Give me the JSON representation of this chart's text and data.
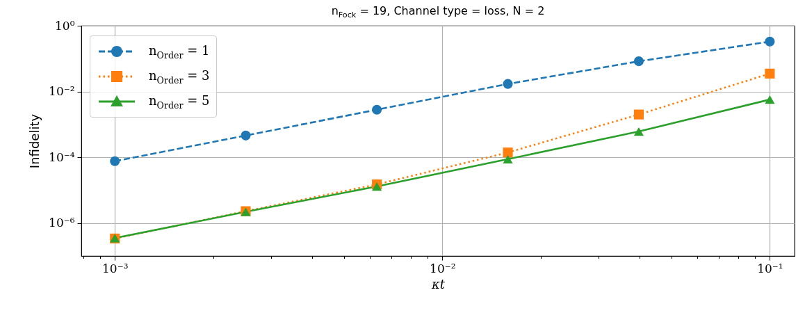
{
  "chart_data": {
    "type": "line",
    "title": "n$_{Fock}$ = 19, Channel type = loss, N = 2",
    "xlabel": "κt",
    "ylabel": "Infidelity",
    "x": [
      0.001,
      0.00251,
      0.00631,
      0.01585,
      0.0398,
      0.1
    ],
    "series": [
      {
        "name": "n$_{Order}$ = 1",
        "color": "#1f77b4",
        "marker": "circle",
        "line_style": "dashed",
        "values": [
          7.6e-05,
          0.00046,
          0.0028,
          0.017,
          0.083,
          0.33
        ]
      },
      {
        "name": "n$_{Order}$ = 3",
        "color": "#ff7f0e",
        "marker": "square",
        "line_style": "dotted",
        "values": [
          3.4e-07,
          2.3e-06,
          1.5e-05,
          0.00014,
          0.002,
          0.035
        ]
      },
      {
        "name": "n$_{Order}$ = 5",
        "color": "#2ca02c",
        "marker": "triangle",
        "line_style": "solid",
        "values": [
          3.5e-07,
          2.2e-06,
          1.3e-05,
          8.8e-05,
          0.00061,
          0.0057
        ]
      }
    ],
    "log": "xy",
    "xlim": [
      0.00079,
      0.119
    ],
    "ylim": [
      1e-07,
      1
    ],
    "xticks": [
      {
        "value": 0.0008,
        "label": null
      },
      {
        "value": 0.0009,
        "label": null
      },
      {
        "value": 0.001,
        "label": "10⁻³"
      },
      {
        "value": 0.002,
        "label": null
      },
      {
        "value": 0.003,
        "label": null
      },
      {
        "value": 0.004,
        "label": null
      },
      {
        "value": 0.005,
        "label": null
      },
      {
        "value": 0.006,
        "label": null
      },
      {
        "value": 0.007,
        "label": null
      },
      {
        "value": 0.008,
        "label": null
      },
      {
        "value": 0.009,
        "label": null
      },
      {
        "value": 0.01,
        "label": "10⁻²"
      },
      {
        "value": 0.02,
        "label": null
      },
      {
        "value": 0.03,
        "label": null
      },
      {
        "value": 0.04,
        "label": null
      },
      {
        "value": 0.05,
        "label": null
      },
      {
        "value": 0.06,
        "label": null
      },
      {
        "value": 0.07,
        "label": null
      },
      {
        "value": 0.08,
        "label": null
      },
      {
        "value": 0.09,
        "label": null
      },
      {
        "value": 0.1,
        "label": "10⁻¹"
      }
    ],
    "yticks": [
      {
        "value": 1e-06,
        "label": "10⁻⁶"
      },
      {
        "value": 0.0001,
        "label": "10⁻⁴"
      },
      {
        "value": 0.01,
        "label": "10⁻²"
      },
      {
        "value": 1,
        "label": "10⁰"
      }
    ],
    "grid": true,
    "legend": "top left"
  }
}
